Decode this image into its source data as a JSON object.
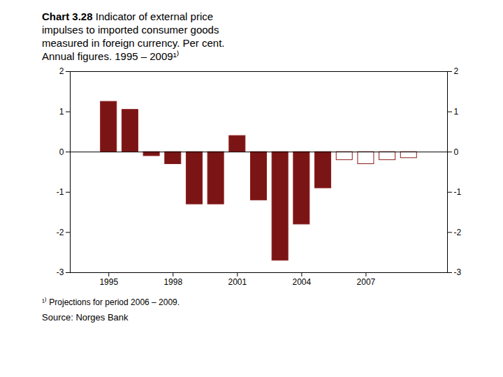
{
  "chart_data": {
    "type": "bar",
    "title": "Chart 3.28",
    "subtitle": "Indicator of external price\nimpulses to imported consumer goods\nmeasured in foreign currency. Per cent.\nAnnual figures. 1995 – 2009¹⁾",
    "footnote": "¹⁾ Projections for period  2006 – 2009.",
    "source": "Source: Norges Bank",
    "x": [
      1995,
      1996,
      1997,
      1998,
      1999,
      2000,
      2001,
      2002,
      2003,
      2004,
      2005,
      2006,
      2007,
      2008,
      2009
    ],
    "values": [
      1.25,
      1.05,
      -0.1,
      -0.3,
      -1.3,
      -1.3,
      0.4,
      -1.2,
      -2.7,
      -1.8,
      -0.9,
      -0.2,
      -0.3,
      -0.2,
      -0.15
    ],
    "colors": [
      "#7B1515",
      "#7B1515",
      "#7B1515",
      "#7B1515",
      "#7B1515",
      "#7B1515",
      "#7B1515",
      "#7B1515",
      "#7B1515",
      "#7B1515",
      "#7B1515",
      "#FFFFFF",
      "#FFFFFF",
      "#FFFFFF",
      "#FFFFFF"
    ],
    "color": "#8B1A1A",
    "xlim": [
      1993.2,
      2010.8
    ],
    "xticks": [
      1995,
      1998,
      2001,
      2004,
      2007
    ],
    "ylim": [
      -3,
      2
    ],
    "yticks": [
      -3,
      -2,
      -1,
      0,
      1,
      2
    ],
    "y2lim": [
      -3,
      2
    ],
    "y2ticks": [
      -3,
      -2,
      -1,
      0,
      1,
      2
    ],
    "grid": false
  }
}
